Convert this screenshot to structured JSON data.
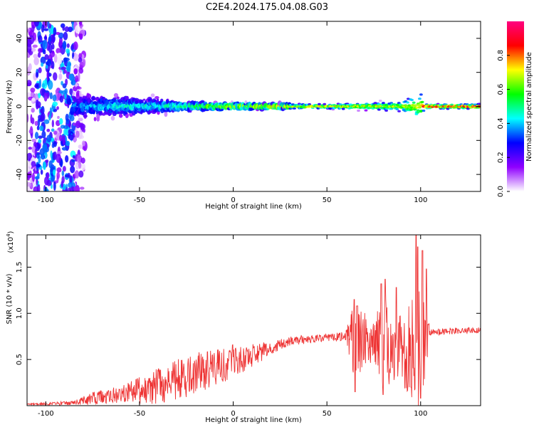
{
  "title": "C2E4.2024.175.04.08.G03",
  "chart_data": [
    {
      "type": "heatmap",
      "xlabel": "Height of straight line (km)",
      "ylabel": "Frequency (Hz)",
      "xlim": [
        -110,
        132
      ],
      "ylim": [
        -50,
        50
      ],
      "xticks": [
        -100,
        -50,
        0,
        50,
        100
      ],
      "yticks": [
        -40,
        -20,
        0,
        20,
        40
      ],
      "colorbar": {
        "label": "Normalized spectral amplitude",
        "range": [
          0.0,
          1.0
        ],
        "ticks": [
          "0.0",
          "0.2",
          "0.4",
          "0.6",
          "0.8"
        ],
        "colors": [
          "#ffffff",
          "#9000ff",
          "#0000ff",
          "#00ffff",
          "#00ff00",
          "#ffff00",
          "#ff0000",
          "#ff0080"
        ]
      },
      "band": [
        {
          "x": -85,
          "halfwidth_hz": 8,
          "peak": 0.35
        },
        {
          "x": -60,
          "halfwidth_hz": 7,
          "peak": 0.45
        },
        {
          "x": -40,
          "halfwidth_hz": 5,
          "peak": 0.45
        },
        {
          "x": -25,
          "halfwidth_hz": 3,
          "peak": 0.55
        },
        {
          "x": 0,
          "halfwidth_hz": 2,
          "peak": 0.7
        },
        {
          "x": 50,
          "halfwidth_hz": 1.5,
          "peak": 0.75
        },
        {
          "x": 90,
          "halfwidth_hz": 3,
          "peak": 0.7
        },
        {
          "x": 100,
          "halfwidth_hz": 10,
          "peak": 0.7
        },
        {
          "x": 102,
          "halfwidth_hz": 1.5,
          "peak": 0.9
        },
        {
          "x": 132,
          "halfwidth_hz": 1.5,
          "peak": 0.9
        }
      ],
      "noise_region_x": [
        -110,
        -85
      ]
    },
    {
      "type": "line",
      "xlabel": "Height of straight line (km)",
      "ylabel": "SNR (10 * v/v)",
      "scale_label": "(x10",
      "scale_exp": "4",
      "scale_close": ")",
      "xlim": [
        -110,
        132
      ],
      "ylim": [
        0,
        18500
      ],
      "xticks": [
        -100,
        -50,
        0,
        50,
        100
      ],
      "yticks": [
        {
          "value": 5000,
          "label": "0.5"
        },
        {
          "value": 10000,
          "label": "1.0"
        },
        {
          "value": 15000,
          "label": "1.5"
        }
      ],
      "color": "#ee3333",
      "envelope": [
        {
          "x": -110,
          "mean": 150,
          "noise": 80
        },
        {
          "x": -85,
          "mean": 300,
          "noise": 250
        },
        {
          "x": -75,
          "mean": 800,
          "noise": 700
        },
        {
          "x": -60,
          "mean": 1200,
          "noise": 900
        },
        {
          "x": -45,
          "mean": 1800,
          "noise": 1800
        },
        {
          "x": -30,
          "mean": 2800,
          "noise": 2200
        },
        {
          "x": -15,
          "mean": 3800,
          "noise": 2200
        },
        {
          "x": 0,
          "mean": 4800,
          "noise": 1800
        },
        {
          "x": 10,
          "mean": 5500,
          "noise": 1400
        },
        {
          "x": 20,
          "mean": 6200,
          "noise": 700
        },
        {
          "x": 30,
          "mean": 7000,
          "noise": 500
        },
        {
          "x": 50,
          "mean": 7400,
          "noise": 400
        },
        {
          "x": 60,
          "mean": 7500,
          "noise": 500
        },
        {
          "x": 65,
          "mean": 7200,
          "noise": 4500
        },
        {
          "x": 75,
          "mean": 7200,
          "noise": 2500
        },
        {
          "x": 80,
          "mean": 7000,
          "noise": 5000
        },
        {
          "x": 90,
          "mean": 6500,
          "noise": 3500
        },
        {
          "x": 97,
          "mean": 6000,
          "noise": 8500
        },
        {
          "x": 102,
          "mean": 6500,
          "noise": 5000
        },
        {
          "x": 105,
          "mean": 8000,
          "noise": 400
        },
        {
          "x": 132,
          "mean": 8200,
          "noise": 300
        }
      ],
      "peaks": [
        {
          "x": 64.5,
          "y": 11500
        },
        {
          "x": 66,
          "y": 10800
        },
        {
          "x": 79,
          "y": 13200
        },
        {
          "x": 81,
          "y": 13700
        },
        {
          "x": 87,
          "y": 12800
        },
        {
          "x": 95,
          "y": 14000
        },
        {
          "x": 97.5,
          "y": 18500
        },
        {
          "x": 98.5,
          "y": 17200
        },
        {
          "x": 101,
          "y": 16800
        },
        {
          "x": 103,
          "y": 14800
        }
      ],
      "dips": [
        {
          "x": 65,
          "y": 1500
        },
        {
          "x": 80,
          "y": 1200
        },
        {
          "x": 95,
          "y": 2000
        },
        {
          "x": 100,
          "y": 800
        }
      ]
    }
  ]
}
